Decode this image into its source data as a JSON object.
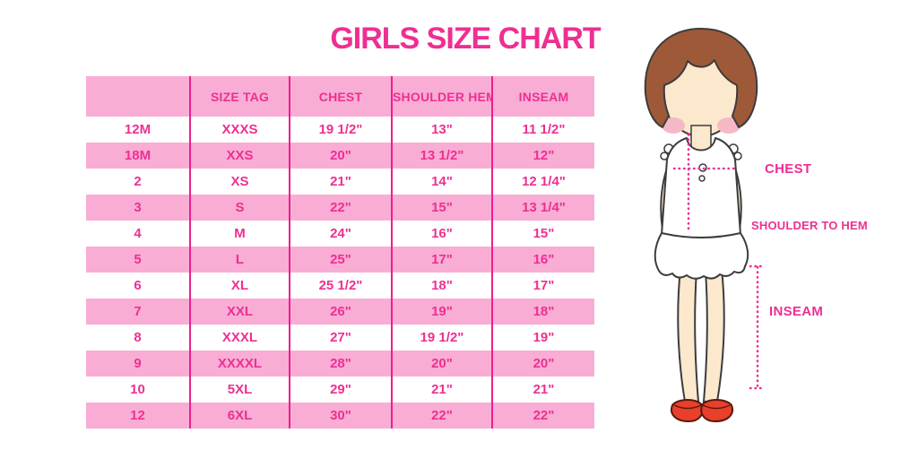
{
  "title": "GIRLS SIZE CHART",
  "colors": {
    "accent_pink": "#ee2f92",
    "row_pink": "#f9add5",
    "grid_line_pink": "#ed1e8e",
    "hair_brown": "#9e5a38",
    "skin": "#fce8cd",
    "blush": "#f5b9c6",
    "shoe_red": "#e8402a"
  },
  "table": {
    "headers": [
      "",
      "SIZE TAG",
      "CHEST",
      "SHOULDER HEM",
      "INSEAM"
    ]
  },
  "chart_data": {
    "type": "table",
    "title": "GIRLS SIZE CHART",
    "columns": [
      "",
      "SIZE TAG",
      "CHEST",
      "SHOULDER HEM",
      "INSEAM"
    ],
    "rows": [
      [
        "12M",
        "XXXS",
        "19 1/2\"",
        "13\"",
        "11 1/2\""
      ],
      [
        "18M",
        "XXS",
        "20\"",
        "13 1/2\"",
        "12\""
      ],
      [
        "2",
        "XS",
        "21\"",
        "14\"",
        "12 1/4\""
      ],
      [
        "3",
        "S",
        "22\"",
        "15\"",
        "13 1/4\""
      ],
      [
        "4",
        "M",
        "24\"",
        "16\"",
        "15\""
      ],
      [
        "5",
        "L",
        "25\"",
        "17\"",
        "16\""
      ],
      [
        "6",
        "XL",
        "25 1/2\"",
        "18\"",
        "17\""
      ],
      [
        "7",
        "XXL",
        "26\"",
        "19\"",
        "18\""
      ],
      [
        "8",
        "XXXL",
        "27\"",
        "19 1/2\"",
        "19\""
      ],
      [
        "9",
        "XXXXL",
        "28\"",
        "20\"",
        "20\""
      ],
      [
        "10",
        "5XL",
        "29\"",
        "21\"",
        "21\""
      ],
      [
        "12",
        "6XL",
        "30\"",
        "22\"",
        "22\""
      ]
    ]
  },
  "figure": {
    "chest_label": "CHEST",
    "shoulder_to_hem_label": "SHOULDER TO HEM",
    "inseam_label": "INSEAM"
  }
}
